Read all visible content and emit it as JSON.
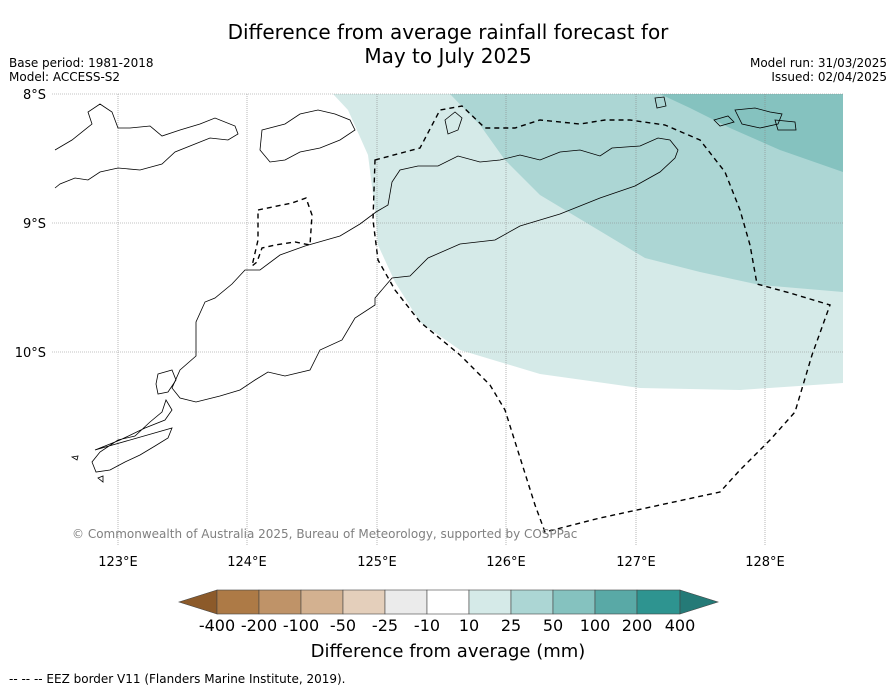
{
  "title_line1": "Difference from average rainfall forecast for",
  "title_line2": "May to July 2025",
  "meta_left": [
    "Base period: 1981-2018",
    "Model: ACCESS-S2"
  ],
  "meta_right": [
    "Model run: 31/03/2025",
    "Issued: 02/04/2025"
  ],
  "map": {
    "lon_range": [
      122.5,
      128.6
    ],
    "lat_range": [
      -8.0,
      -11.5
    ],
    "lon_ticks": [
      "123°E",
      "124°E",
      "125°E",
      "126°E",
      "127°E",
      "128°E"
    ],
    "lat_ticks": [
      "8°S",
      "9°S",
      "10°S"
    ],
    "grid": true,
    "shading": [
      {
        "category": "10 to 25",
        "color": "#d5eae8"
      },
      {
        "category": "25 to 50",
        "color": "#acd6d4"
      },
      {
        "category": "50 to 100",
        "color": "#85c2bf"
      }
    ],
    "copyright": "© Commonwealth of Australia 2025, Bureau of Meteorology, supported by COSPPac"
  },
  "colorbar": {
    "labels": [
      "-400",
      "-200",
      "-100",
      "-50",
      "-25",
      "-10",
      "10",
      "25",
      "50",
      "100",
      "200",
      "400"
    ],
    "colors": [
      "#8c5a2a",
      "#ad7a46",
      "#bf9368",
      "#d3b190",
      "#e4cfbb",
      "#ebebeb",
      "#ffffff",
      "#d5eae8",
      "#acd6d4",
      "#85c2bf",
      "#59a9a6",
      "#2e9490",
      "#257a77"
    ],
    "title": "Difference from average (mm)"
  },
  "footnote": "--  --  -- EEZ border V11 (Flanders Marine Institute, 2019)."
}
